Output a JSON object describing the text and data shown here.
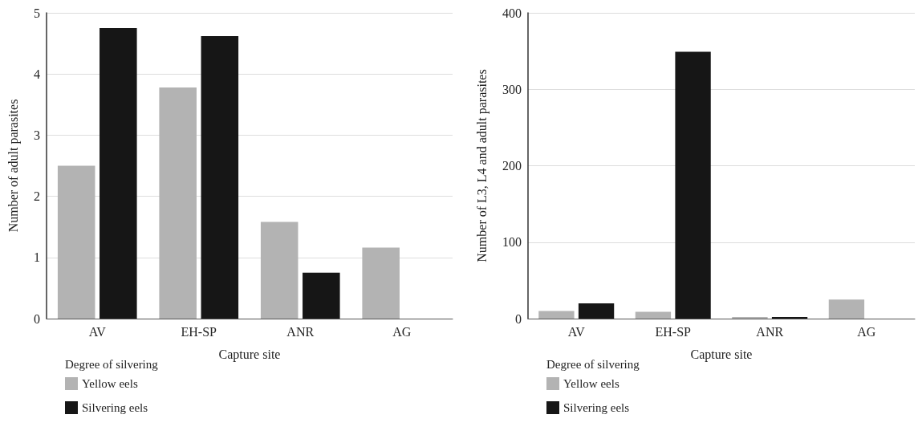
{
  "chart_data": [
    {
      "type": "bar",
      "xlabel": "Capture site",
      "ylabel": "Number of adult parasites",
      "legend_title": "Degree of silvering",
      "categories": [
        "AV",
        "EH-SP",
        "ANR",
        "AG"
      ],
      "series": [
        {
          "name": "Yellow eels",
          "color": "#b3b3b3",
          "values": [
            2.5,
            3.78,
            1.58,
            1.16
          ]
        },
        {
          "name": "Silvering eels",
          "color": "#161616",
          "values": [
            4.75,
            4.62,
            0.75,
            null
          ]
        }
      ],
      "ylim": [
        0,
        5
      ],
      "yticks": [
        0,
        1,
        2,
        3,
        4,
        5
      ],
      "grid": "y",
      "legend": "bottom left"
    },
    {
      "type": "bar",
      "xlabel": "Capture site",
      "ylabel": "Number of L3, L4 and adult parasites",
      "legend_title": "Degree of silvering",
      "categories": [
        "AV",
        "EH-SP",
        "ANR",
        "AG"
      ],
      "series": [
        {
          "name": "Yellow eels",
          "color": "#b3b3b3",
          "values": [
            10,
            9,
            2,
            25
          ]
        },
        {
          "name": "Silvering eels",
          "color": "#161616",
          "values": [
            20,
            349,
            2,
            null
          ]
        }
      ],
      "ylim": [
        0,
        400
      ],
      "yticks": [
        0,
        100,
        200,
        300,
        400
      ],
      "grid": "y",
      "legend": "bottom left"
    }
  ]
}
